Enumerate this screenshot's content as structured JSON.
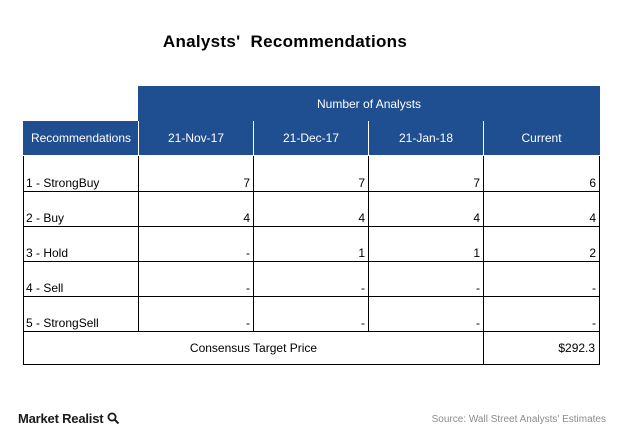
{
  "title": "Analysts'  Recommendations",
  "group_header": "Number of Analysts",
  "first_column_header": "Recommendations",
  "consensus": {
    "label": "Consensus Target Price",
    "value": "$292.3"
  },
  "branding": {
    "logo_text": "Market Realist",
    "logo_icon": "magnifier-icon"
  },
  "source": "Source:  Wall Street Analysts' Estimates",
  "colors": {
    "header_fill": "#1f4e91",
    "header_text": "#ffffff"
  },
  "chart_data": {
    "type": "table",
    "columns": [
      "21-Nov-17",
      "21-Dec-17",
      "21-Jan-18",
      "Current"
    ],
    "rows": [
      {
        "label": "1 - StrongBuy",
        "values": [
          "7",
          "7",
          "7",
          "6"
        ]
      },
      {
        "label": "2 - Buy",
        "values": [
          "4",
          "4",
          "4",
          "4"
        ]
      },
      {
        "label": "3 - Hold",
        "values": [
          "-",
          "1",
          "1",
          "2"
        ]
      },
      {
        "label": "4 - Sell",
        "values": [
          "-",
          "-",
          "-",
          "-"
        ]
      },
      {
        "label": "5 - StrongSell",
        "values": [
          "-",
          "-",
          "-",
          "-"
        ]
      }
    ]
  }
}
